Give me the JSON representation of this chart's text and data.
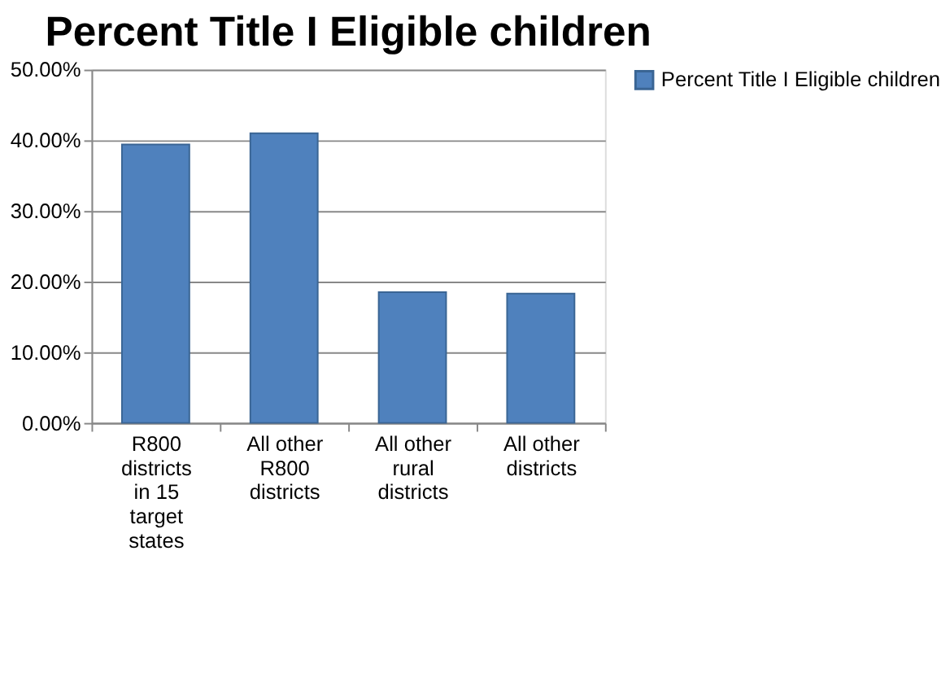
{
  "chart_data": {
    "type": "bar",
    "title": "Percent Title I Eligible children",
    "categories": [
      "R800 districts in 15 target states",
      "All other R800 districts",
      "All other rural districts",
      "All other districts"
    ],
    "series": [
      {
        "name": "Percent Title I Eligible children",
        "color": "#4f81bd",
        "values": [
          39.4,
          41.0,
          18.5,
          18.3
        ]
      }
    ],
    "ylim": [
      0,
      50
    ],
    "yticks": [
      {
        "value": 0,
        "label": "0.00%"
      },
      {
        "value": 10,
        "label": "10.00%"
      },
      {
        "value": 20,
        "label": "20.00%"
      },
      {
        "value": 30,
        "label": "30.00%"
      },
      {
        "value": 40,
        "label": "40.00%"
      },
      {
        "value": 50,
        "label": "50.00%"
      }
    ],
    "grid": "y",
    "legend": "right"
  }
}
